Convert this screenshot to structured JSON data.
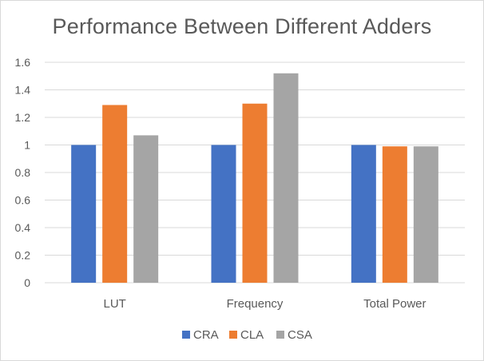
{
  "chart_data": {
    "type": "bar",
    "title": "Performance Between Different Adders",
    "xlabel": "",
    "ylabel": "",
    "categories": [
      "LUT",
      "Frequency",
      "Total Power"
    ],
    "series": [
      {
        "name": "CRA",
        "color": "#4472c4",
        "values": [
          1.0,
          1.0,
          1.0
        ]
      },
      {
        "name": "CLA",
        "color": "#ed7d31",
        "values": [
          1.29,
          1.3,
          0.99
        ]
      },
      {
        "name": "CSA",
        "color": "#a5a5a5",
        "values": [
          1.07,
          1.52,
          0.99
        ]
      }
    ],
    "ylim": [
      0,
      1.6
    ],
    "yticks": [
      0,
      0.2,
      0.4,
      0.6,
      0.8,
      1,
      1.2,
      1.4,
      1.6
    ],
    "ytick_labels": [
      "0",
      "0.2",
      "0.4",
      "0.6",
      "0.8",
      "1",
      "1.2",
      "1.4",
      "1.6"
    ],
    "grid": true,
    "legend_position": "bottom",
    "colors": {
      "grid": "#d9d9d9",
      "text": "#595959"
    }
  }
}
